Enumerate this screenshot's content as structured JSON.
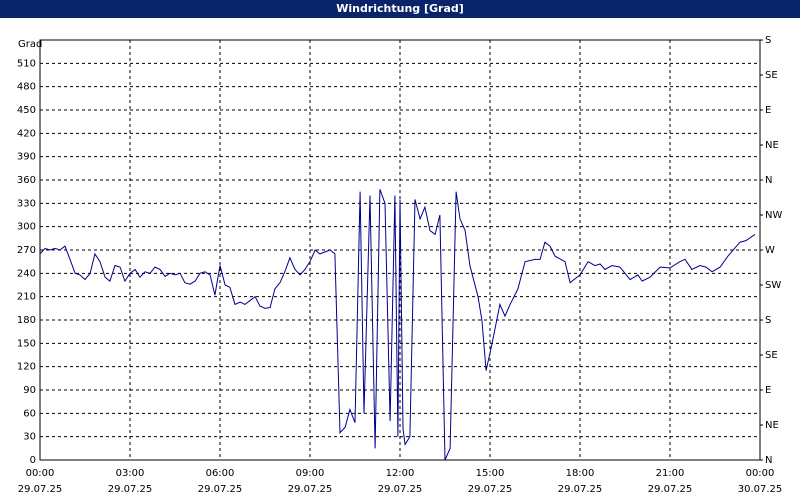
{
  "chart_data": {
    "type": "line",
    "title": "Windrichtung [Grad]",
    "y_axis_label": "Grad",
    "x": [
      0,
      0.17,
      0.33,
      0.5,
      0.67,
      0.83,
      1.0,
      1.17,
      1.33,
      1.5,
      1.67,
      1.83,
      2.0,
      2.17,
      2.33,
      2.5,
      2.67,
      2.83,
      3.0,
      3.17,
      3.33,
      3.5,
      3.67,
      3.83,
      4.0,
      4.17,
      4.33,
      4.5,
      4.67,
      4.83,
      5.0,
      5.17,
      5.33,
      5.5,
      5.67,
      5.83,
      6.0,
      6.17,
      6.33,
      6.5,
      6.67,
      6.83,
      7.0,
      7.17,
      7.33,
      7.5,
      7.67,
      7.83,
      8.0,
      8.17,
      8.33,
      8.5,
      8.67,
      8.83,
      9.0,
      9.17,
      9.33,
      9.67,
      9.83,
      10,
      10.17,
      10.33,
      10.5,
      10.67,
      10.8,
      11,
      11.17,
      11.33,
      11.5,
      11.67,
      11.83,
      11.93,
      12,
      12.1,
      12.17,
      12.33,
      12.5,
      12.67,
      12.83,
      13,
      13.17,
      13.33,
      13.5,
      13.67,
      13.87,
      14,
      14.17,
      14.33,
      14.6,
      14.73,
      14.87,
      15.07,
      15.33,
      15.5,
      15.67,
      15.93,
      16.17,
      16.5,
      16.67,
      16.83,
      17,
      17.17,
      17.5,
      17.67,
      18,
      18.27,
      18.5,
      18.67,
      18.83,
      19.07,
      19.33,
      19.67,
      19.93,
      20.07,
      20.33,
      20.67,
      21,
      21.33,
      21.5,
      21.73,
      22,
      22.2,
      22.4,
      22.67,
      22.93,
      23.33,
      23.53,
      23.83
    ],
    "series": [
      {
        "name": "Windrichtung",
        "color": "#00008b",
        "values": [
          265,
          272,
          270,
          272,
          270,
          275,
          258,
          240,
          238,
          232,
          240,
          265,
          255,
          235,
          230,
          250,
          248,
          230,
          240,
          245,
          235,
          242,
          240,
          248,
          245,
          236,
          240,
          238,
          240,
          228,
          226,
          230,
          240,
          242,
          238,
          212,
          250,
          225,
          222,
          200,
          203,
          200,
          205,
          210,
          198,
          195,
          196,
          220,
          228,
          243,
          260,
          245,
          238,
          245,
          255,
          270,
          265,
          270,
          265,
          35,
          42,
          65,
          48,
          345,
          60,
          340,
          15,
          348,
          330,
          50,
          340,
          30,
          335,
          40,
          20,
          30,
          335,
          310,
          325,
          295,
          290,
          315,
          0,
          15,
          345,
          310,
          295,
          250,
          210,
          180,
          115,
          150,
          200,
          185,
          200,
          220,
          255,
          258,
          258,
          280,
          275,
          262,
          255,
          228,
          238,
          255,
          250,
          252,
          245,
          250,
          248,
          232,
          238,
          230,
          235,
          248,
          247,
          255,
          258,
          245,
          250,
          248,
          242,
          248,
          262,
          280,
          282,
          290
        ]
      }
    ],
    "xlim": [
      0,
      24
    ],
    "xticks": [
      {
        "value": 0,
        "label": "00:00",
        "date": "29.07.25"
      },
      {
        "value": 3,
        "label": "03:00",
        "date": "29.07.25"
      },
      {
        "value": 6,
        "label": "06:00",
        "date": "29.07.25"
      },
      {
        "value": 9,
        "label": "09:00",
        "date": "29.07.25"
      },
      {
        "value": 12,
        "label": "12:00",
        "date": "29.07.25"
      },
      {
        "value": 15,
        "label": "15:00",
        "date": "29.07.25"
      },
      {
        "value": 18,
        "label": "18:00",
        "date": "29.07.25"
      },
      {
        "value": 21,
        "label": "21:00",
        "date": "29.07.25"
      },
      {
        "value": 24,
        "label": "00:00",
        "date": "30.07.25"
      }
    ],
    "ylim": [
      0,
      540
    ],
    "yticks": [
      0,
      30,
      60,
      90,
      120,
      150,
      180,
      210,
      240,
      270,
      300,
      330,
      360,
      390,
      420,
      450,
      480,
      510
    ],
    "y2lim": [
      0,
      540
    ],
    "y2ticks": [
      {
        "value": 0,
        "label": "N"
      },
      {
        "value": 45,
        "label": "NE"
      },
      {
        "value": 90,
        "label": "E"
      },
      {
        "value": 135,
        "label": "SE"
      },
      {
        "value": 180,
        "label": "S"
      },
      {
        "value": 225,
        "label": "SW"
      },
      {
        "value": 270,
        "label": "W"
      },
      {
        "value": 315,
        "label": "NW"
      },
      {
        "value": 360,
        "label": "N"
      },
      {
        "value": 405,
        "label": "NE"
      },
      {
        "value": 450,
        "label": "E"
      },
      {
        "value": 495,
        "label": "SE"
      },
      {
        "value": 540,
        "label": "S"
      }
    ],
    "grid": true
  }
}
